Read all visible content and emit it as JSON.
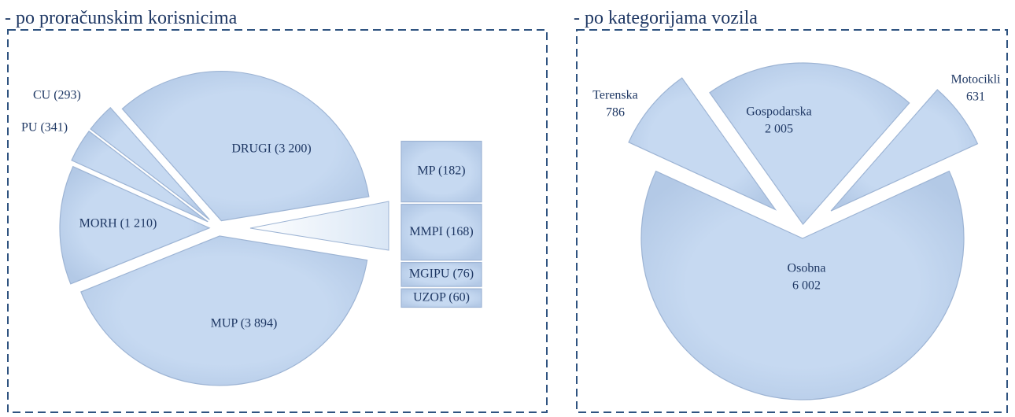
{
  "chart_data": [
    {
      "type": "pie",
      "title": "- po proračunskim korisnicima",
      "values": [
        3894,
        1210,
        341,
        293,
        3200
      ],
      "value_labels": [
        "MUP (3 894)",
        "MORH (1 210)",
        "PU (341)",
        "CU (293)",
        "DRUGI (3 200)"
      ],
      "secondary": {
        "values": [
          182,
          168,
          76,
          60
        ],
        "value_labels": [
          "MP (182)",
          "MMPI (168)",
          "MGIPU (76)",
          "UZOP (60)"
        ]
      },
      "color": "#c6d9f1"
    },
    {
      "type": "pie",
      "title": "- po kategorijama vozila",
      "categories": [
        "Osobna",
        "Terenska",
        "Gospodarska",
        "Motocikli"
      ],
      "values": [
        6002,
        786,
        2005,
        631
      ],
      "value_labels": [
        "6 002",
        "786",
        "2 005",
        "631"
      ],
      "color": "#c6d9f1"
    }
  ]
}
